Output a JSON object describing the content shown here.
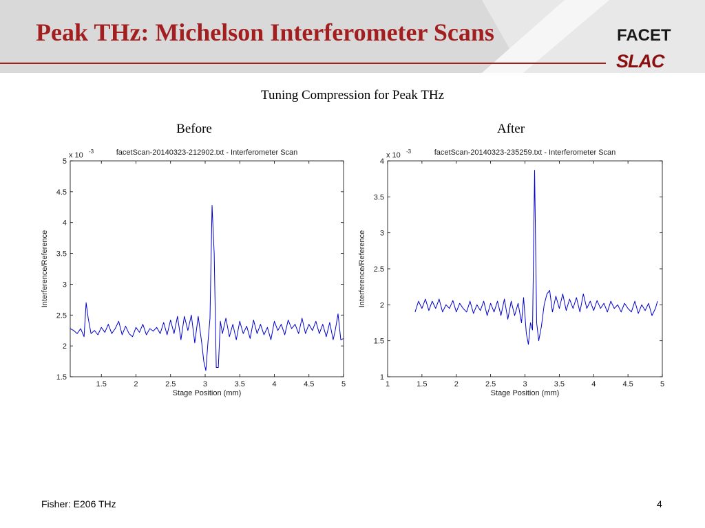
{
  "slide": {
    "title": "Peak THz: Michelson Interferometer Scans",
    "subtitle": "Tuning Compression for Peak THz",
    "footer_text": "Fisher: E206 THz",
    "page_number": "4",
    "logos": {
      "facet": "FACET",
      "slac": "SLAC"
    },
    "colors": {
      "title": "#a31f1f",
      "header_band": "#d9d9d9",
      "header_rule": "#a31f1f",
      "series": "#0000cc"
    }
  },
  "chart_data": [
    {
      "type": "line",
      "panel_label": "Before",
      "title": "facetScan-20140323-212902.txt - Interferometer Scan",
      "xlabel": "Stage Position (mm)",
      "ylabel": "Interference/Reference",
      "y_multiplier": "x 10",
      "y_exponent": "-3",
      "xlim": [
        1.05,
        5.0
      ],
      "ylim": [
        1.5,
        5.0
      ],
      "xticks": [
        1.5,
        2.0,
        2.5,
        3.0,
        3.5,
        4.0,
        4.5,
        5.0
      ],
      "xtick_labels": [
        "1.5",
        "2",
        "2.5",
        "3",
        "3.5",
        "4",
        "4.5",
        "5"
      ],
      "yticks": [
        1.5,
        2.0,
        2.5,
        3.0,
        3.5,
        4.0,
        4.5,
        5.0
      ],
      "ytick_labels": [
        "1.5",
        "2",
        "2.5",
        "3",
        "3.5",
        "4",
        "4.5",
        "5"
      ],
      "grid": false,
      "series": [
        {
          "color": "#0000cc",
          "x": [
            1.05,
            1.1,
            1.15,
            1.2,
            1.25,
            1.28,
            1.31,
            1.35,
            1.4,
            1.45,
            1.5,
            1.55,
            1.6,
            1.65,
            1.7,
            1.75,
            1.8,
            1.85,
            1.9,
            1.95,
            2.0,
            2.05,
            2.1,
            2.15,
            2.2,
            2.25,
            2.3,
            2.35,
            2.4,
            2.45,
            2.5,
            2.55,
            2.6,
            2.65,
            2.7,
            2.75,
            2.8,
            2.85,
            2.9,
            2.95,
            2.98,
            3.01,
            3.04,
            3.07,
            3.1,
            3.13,
            3.16,
            3.19,
            3.22,
            3.25,
            3.3,
            3.35,
            3.4,
            3.45,
            3.5,
            3.55,
            3.6,
            3.65,
            3.7,
            3.75,
            3.8,
            3.85,
            3.9,
            3.95,
            4.0,
            4.05,
            4.1,
            4.15,
            4.2,
            4.25,
            4.3,
            4.35,
            4.4,
            4.45,
            4.5,
            4.55,
            4.6,
            4.65,
            4.7,
            4.75,
            4.8,
            4.85,
            4.88,
            4.92,
            4.96,
            5.0
          ],
          "y": [
            2.28,
            2.25,
            2.2,
            2.28,
            2.15,
            2.7,
            2.45,
            2.2,
            2.25,
            2.18,
            2.3,
            2.22,
            2.35,
            2.2,
            2.28,
            2.4,
            2.18,
            2.32,
            2.2,
            2.15,
            2.3,
            2.22,
            2.35,
            2.18,
            2.28,
            2.24,
            2.3,
            2.2,
            2.38,
            2.18,
            2.42,
            2.2,
            2.48,
            2.1,
            2.48,
            2.25,
            2.5,
            2.05,
            2.48,
            2.05,
            1.75,
            1.6,
            2.05,
            2.45,
            4.28,
            3.5,
            1.65,
            1.65,
            2.4,
            2.2,
            2.45,
            2.15,
            2.35,
            2.1,
            2.4,
            2.2,
            2.32,
            2.12,
            2.42,
            2.2,
            2.35,
            2.18,
            2.3,
            2.1,
            2.4,
            2.25,
            2.35,
            2.18,
            2.42,
            2.28,
            2.35,
            2.2,
            2.45,
            2.2,
            2.35,
            2.25,
            2.4,
            2.2,
            2.35,
            2.15,
            2.38,
            2.1,
            2.25,
            2.52,
            2.1,
            2.12
          ]
        }
      ]
    },
    {
      "type": "line",
      "panel_label": "After",
      "title": "facetScan-20140323-235259.txt - Interferometer Scan",
      "xlabel": "Stage Position (mm)",
      "ylabel": "Interference/Reference",
      "y_multiplier": "x 10",
      "y_exponent": "-3",
      "xlim": [
        1.0,
        5.0
      ],
      "ylim": [
        1.0,
        4.0
      ],
      "xticks": [
        1.0,
        1.5,
        2.0,
        2.5,
        3.0,
        3.5,
        4.0,
        4.5,
        5.0
      ],
      "xtick_labels": [
        "1",
        "1.5",
        "2",
        "2.5",
        "3",
        "3.5",
        "4",
        "4.5",
        "5"
      ],
      "yticks": [
        1.0,
        1.5,
        2.0,
        2.5,
        3.0,
        3.5,
        4.0
      ],
      "ytick_labels": [
        "1",
        "1.5",
        "2",
        "2.5",
        "3",
        "3.5",
        "4"
      ],
      "grid": false,
      "series": [
        {
          "color": "#0000cc",
          "x": [
            1.4,
            1.45,
            1.5,
            1.55,
            1.6,
            1.65,
            1.7,
            1.75,
            1.8,
            1.85,
            1.9,
            1.95,
            2.0,
            2.05,
            2.1,
            2.15,
            2.2,
            2.25,
            2.3,
            2.35,
            2.4,
            2.45,
            2.5,
            2.55,
            2.6,
            2.65,
            2.7,
            2.75,
            2.8,
            2.85,
            2.9,
            2.95,
            2.98,
            3.02,
            3.05,
            3.08,
            3.11,
            3.14,
            3.17,
            3.2,
            3.24,
            3.28,
            3.32,
            3.36,
            3.4,
            3.45,
            3.5,
            3.55,
            3.6,
            3.65,
            3.7,
            3.75,
            3.8,
            3.85,
            3.9,
            3.95,
            4.0,
            4.05,
            4.1,
            4.15,
            4.2,
            4.25,
            4.3,
            4.35,
            4.4,
            4.45,
            4.5,
            4.55,
            4.6,
            4.65,
            4.7,
            4.75,
            4.8,
            4.85,
            4.9,
            4.93
          ],
          "y": [
            1.9,
            2.05,
            1.95,
            2.08,
            1.92,
            2.05,
            1.95,
            2.08,
            1.9,
            2.0,
            1.95,
            2.06,
            1.9,
            2.02,
            1.95,
            1.9,
            2.05,
            1.88,
            2.0,
            1.92,
            2.05,
            1.85,
            2.02,
            1.9,
            2.05,
            1.85,
            2.08,
            1.8,
            2.05,
            1.85,
            2.02,
            1.75,
            2.1,
            1.6,
            1.45,
            1.75,
            1.65,
            3.87,
            1.75,
            1.5,
            1.7,
            2.0,
            2.15,
            2.2,
            1.9,
            2.12,
            1.95,
            2.15,
            1.92,
            2.08,
            1.95,
            2.1,
            1.9,
            2.15,
            1.95,
            2.05,
            1.92,
            2.06,
            1.95,
            2.02,
            1.9,
            2.05,
            1.95,
            2.0,
            1.9,
            2.02,
            1.95,
            1.9,
            2.05,
            1.88,
            2.0,
            1.92,
            2.02,
            1.85,
            1.95,
            2.05
          ]
        }
      ]
    }
  ]
}
